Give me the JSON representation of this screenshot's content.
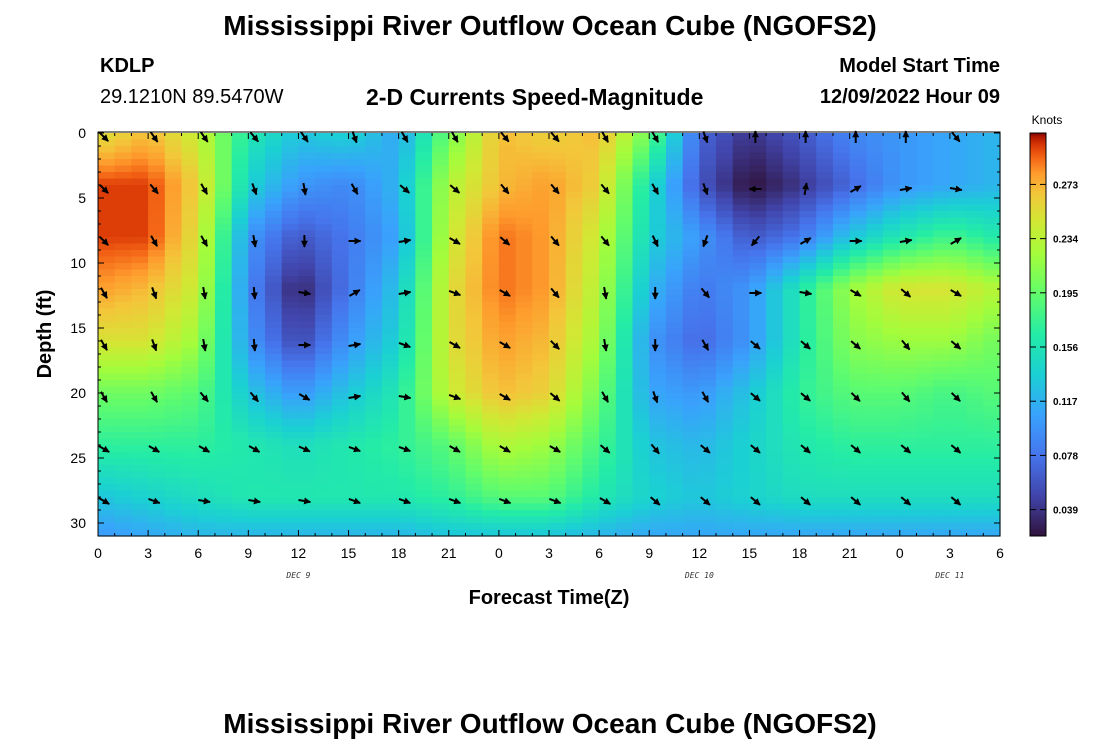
{
  "header": {
    "title": "Mississippi River Outflow Ocean Cube (NGOFS2)",
    "station": "KDLP",
    "coords": "29.1210N  89.5470W",
    "plot_title": "2-D Currents Speed-Magnitude",
    "model_start_label": "Model Start Time",
    "model_start_value": "12/09/2022 Hour 09"
  },
  "footer": {
    "title": "Mississippi River Outflow Ocean Cube (NGOFS2)"
  },
  "chart_data": {
    "type": "heatmap",
    "xlabel": "Forecast Time(Z)",
    "ylabel": "Depth (ft)",
    "x_tick_labels": [
      "0",
      "3",
      "6",
      "9",
      "12",
      "15",
      "18",
      "21",
      "0",
      "3",
      "6",
      "9",
      "12",
      "15",
      "18",
      "21",
      "0",
      "3",
      "6"
    ],
    "x_range_hours": [
      0,
      54
    ],
    "day_labels": [
      {
        "hour": 12,
        "text": "DEC 9"
      },
      {
        "hour": 36,
        "text": "DEC 10"
      },
      {
        "hour": 51,
        "text": "DEC 11"
      }
    ],
    "y_ticks": [
      0,
      5,
      10,
      15,
      20,
      25,
      30
    ],
    "y_range": [
      0,
      31
    ],
    "colorbar": {
      "unit": "Knots",
      "min": 0.02,
      "max": 0.31,
      "ticks": [
        0.273,
        0.234,
        0.195,
        0.156,
        0.117,
        0.078,
        0.039
      ],
      "tick_labels": [
        "0.273",
        "0.234",
        "0.195",
        "0.156",
        "0.117",
        "0.078",
        "0.039"
      ]
    },
    "speed_hours": [
      0,
      3,
      6,
      9,
      12,
      15,
      18,
      21,
      24,
      27,
      30,
      33,
      36,
      39,
      42,
      45,
      48,
      51,
      54
    ],
    "speed_depths": [
      0,
      4,
      8,
      12,
      16,
      20,
      24,
      28,
      31
    ],
    "speed_knots": [
      [
        0.25,
        0.27,
        0.24,
        0.16,
        0.13,
        0.14,
        0.11,
        0.2,
        0.27,
        0.26,
        0.27,
        0.2,
        0.07,
        0.04,
        0.06,
        0.09,
        0.1,
        0.11,
        0.12
      ],
      [
        0.3,
        0.3,
        0.26,
        0.14,
        0.1,
        0.09,
        0.12,
        0.23,
        0.27,
        0.28,
        0.26,
        0.15,
        0.06,
        0.02,
        0.04,
        0.07,
        0.1,
        0.11,
        0.12
      ],
      [
        0.3,
        0.3,
        0.25,
        0.1,
        0.06,
        0.08,
        0.11,
        0.24,
        0.29,
        0.28,
        0.24,
        0.14,
        0.1,
        0.06,
        0.08,
        0.13,
        0.16,
        0.18,
        0.16
      ],
      [
        0.28,
        0.27,
        0.24,
        0.09,
        0.03,
        0.08,
        0.13,
        0.25,
        0.29,
        0.28,
        0.23,
        0.12,
        0.08,
        0.1,
        0.16,
        0.22,
        0.25,
        0.25,
        0.23
      ],
      [
        0.25,
        0.25,
        0.22,
        0.1,
        0.05,
        0.1,
        0.14,
        0.25,
        0.28,
        0.27,
        0.22,
        0.1,
        0.07,
        0.1,
        0.16,
        0.21,
        0.22,
        0.22,
        0.2
      ],
      [
        0.2,
        0.2,
        0.19,
        0.13,
        0.1,
        0.13,
        0.16,
        0.24,
        0.27,
        0.26,
        0.2,
        0.11,
        0.1,
        0.13,
        0.17,
        0.19,
        0.19,
        0.18,
        0.19
      ],
      [
        0.17,
        0.17,
        0.17,
        0.16,
        0.15,
        0.16,
        0.17,
        0.19,
        0.23,
        0.22,
        0.18,
        0.13,
        0.12,
        0.14,
        0.16,
        0.17,
        0.17,
        0.17,
        0.17
      ],
      [
        0.13,
        0.14,
        0.15,
        0.16,
        0.16,
        0.16,
        0.16,
        0.17,
        0.19,
        0.19,
        0.16,
        0.14,
        0.13,
        0.14,
        0.15,
        0.15,
        0.15,
        0.15,
        0.15
      ],
      [
        0.1,
        0.11,
        0.12,
        0.12,
        0.12,
        0.12,
        0.12,
        0.13,
        0.13,
        0.13,
        0.12,
        0.11,
        0.11,
        0.11,
        0.11,
        0.11,
        0.11,
        0.11,
        0.11
      ]
    ],
    "vectors": {
      "hours": [
        0,
        3,
        6,
        9,
        12,
        15,
        18,
        21,
        24,
        27,
        30,
        33,
        36,
        39,
        42,
        45,
        48,
        51
      ],
      "depths": [
        0,
        4,
        8,
        12,
        16,
        20,
        24,
        28
      ],
      "direction_deg": [
        [
          135,
          145,
          145,
          140,
          145,
          160,
          150,
          150,
          140,
          140,
          150,
          150,
          160,
          0,
          0,
          0,
          0,
          140
        ],
        [
          135,
          140,
          150,
          160,
          170,
          150,
          130,
          130,
          140,
          140,
          140,
          150,
          160,
          270,
          10,
          60,
          80,
          100
        ],
        [
          135,
          150,
          150,
          170,
          180,
          90,
          80,
          120,
          130,
          140,
          140,
          155,
          200,
          220,
          60,
          90,
          80,
          60
        ],
        [
          150,
          160,
          170,
          175,
          100,
          60,
          80,
          110,
          120,
          140,
          170,
          180,
          140,
          90,
          100,
          120,
          130,
          120
        ],
        [
          150,
          160,
          170,
          175,
          90,
          80,
          110,
          120,
          120,
          135,
          170,
          180,
          150,
          130,
          130,
          130,
          140,
          130
        ],
        [
          150,
          150,
          140,
          140,
          120,
          80,
          100,
          110,
          120,
          130,
          150,
          160,
          150,
          130,
          130,
          135,
          140,
          135
        ],
        [
          120,
          120,
          120,
          120,
          115,
          110,
          110,
          120,
          120,
          120,
          130,
          140,
          130,
          130,
          130,
          130,
          130,
          130
        ],
        [
          120,
          110,
          100,
          100,
          100,
          110,
          110,
          110,
          110,
          110,
          120,
          130,
          130,
          130,
          130,
          130,
          130,
          130
        ]
      ]
    }
  }
}
